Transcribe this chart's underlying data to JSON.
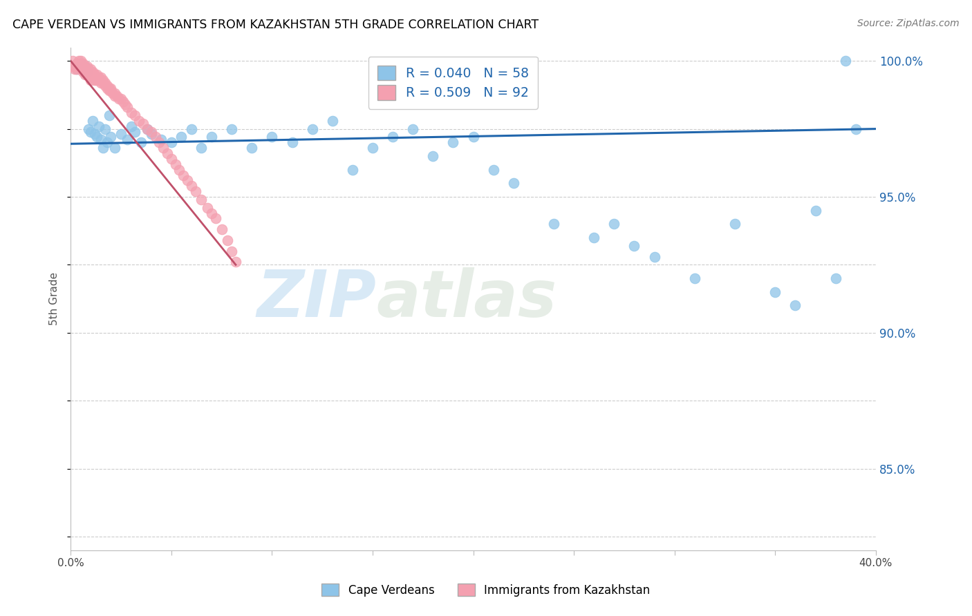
{
  "title": "CAPE VERDEAN VS IMMIGRANTS FROM KAZAKHSTAN 5TH GRADE CORRELATION CHART",
  "source": "Source: ZipAtlas.com",
  "ylabel": "5th Grade",
  "xmin": 0.0,
  "xmax": 0.4,
  "ymin": 0.82,
  "ymax": 1.005,
  "yticks": [
    0.85,
    0.9,
    0.95,
    1.0
  ],
  "ytick_labels": [
    "85.0%",
    "90.0%",
    "95.0%",
    "100.0%"
  ],
  "xticks": [
    0.0,
    0.05,
    0.1,
    0.15,
    0.2,
    0.25,
    0.3,
    0.35,
    0.4
  ],
  "xtick_labels": [
    "0.0%",
    "",
    "",
    "",
    "",
    "",
    "",
    "",
    "40.0%"
  ],
  "legend_label1": "Cape Verdeans",
  "legend_label2": "Immigrants from Kazakhstan",
  "R1": 0.04,
  "N1": 58,
  "R2": 0.509,
  "N2": 92,
  "color_blue": "#8ec4e8",
  "color_pink": "#f4a0b0",
  "color_line_blue": "#2166ac",
  "color_grid": "#cccccc",
  "watermark_zip": "ZIP",
  "watermark_atlas": "atlas",
  "blue_x": [
    0.003,
    0.005,
    0.007,
    0.008,
    0.009,
    0.01,
    0.011,
    0.012,
    0.013,
    0.014,
    0.015,
    0.016,
    0.017,
    0.018,
    0.019,
    0.02,
    0.022,
    0.025,
    0.028,
    0.03,
    0.032,
    0.035,
    0.038,
    0.04,
    0.045,
    0.05,
    0.055,
    0.06,
    0.065,
    0.07,
    0.08,
    0.09,
    0.1,
    0.11,
    0.12,
    0.13,
    0.14,
    0.15,
    0.16,
    0.17,
    0.18,
    0.19,
    0.2,
    0.21,
    0.22,
    0.24,
    0.26,
    0.27,
    0.28,
    0.29,
    0.31,
    0.33,
    0.35,
    0.36,
    0.37,
    0.38,
    0.39,
    0.385
  ],
  "blue_y": [
    0.997,
    0.999,
    0.998,
    0.996,
    0.975,
    0.974,
    0.978,
    0.973,
    0.972,
    0.976,
    0.971,
    0.968,
    0.975,
    0.97,
    0.98,
    0.972,
    0.968,
    0.973,
    0.971,
    0.976,
    0.974,
    0.97,
    0.975,
    0.973,
    0.971,
    0.97,
    0.972,
    0.975,
    0.968,
    0.972,
    0.975,
    0.968,
    0.972,
    0.97,
    0.975,
    0.978,
    0.96,
    0.968,
    0.972,
    0.975,
    0.965,
    0.97,
    0.972,
    0.96,
    0.955,
    0.94,
    0.935,
    0.94,
    0.932,
    0.928,
    0.92,
    0.94,
    0.915,
    0.91,
    0.945,
    0.92,
    0.975,
    1.0
  ],
  "pink_x": [
    0.001,
    0.001,
    0.002,
    0.002,
    0.003,
    0.003,
    0.003,
    0.004,
    0.004,
    0.004,
    0.005,
    0.005,
    0.005,
    0.005,
    0.006,
    0.006,
    0.006,
    0.006,
    0.007,
    0.007,
    0.007,
    0.007,
    0.008,
    0.008,
    0.008,
    0.008,
    0.009,
    0.009,
    0.009,
    0.01,
    0.01,
    0.01,
    0.01,
    0.01,
    0.011,
    0.011,
    0.011,
    0.012,
    0.012,
    0.012,
    0.013,
    0.013,
    0.013,
    0.014,
    0.014,
    0.015,
    0.015,
    0.015,
    0.016,
    0.016,
    0.017,
    0.017,
    0.018,
    0.018,
    0.019,
    0.019,
    0.02,
    0.02,
    0.021,
    0.022,
    0.022,
    0.023,
    0.024,
    0.025,
    0.026,
    0.027,
    0.028,
    0.03,
    0.032,
    0.034,
    0.036,
    0.038,
    0.04,
    0.042,
    0.044,
    0.046,
    0.048,
    0.05,
    0.052,
    0.054,
    0.056,
    0.058,
    0.06,
    0.062,
    0.065,
    0.068,
    0.07,
    0.072,
    0.075,
    0.078,
    0.08,
    0.082
  ],
  "pink_y": [
    0.998,
    1.0,
    0.998,
    0.997,
    0.999,
    0.998,
    0.997,
    1.0,
    0.999,
    0.998,
    1.0,
    0.999,
    0.998,
    0.997,
    0.999,
    0.998,
    0.997,
    0.996,
    0.998,
    0.997,
    0.996,
    0.995,
    0.998,
    0.997,
    0.996,
    0.995,
    0.997,
    0.996,
    0.995,
    0.997,
    0.996,
    0.995,
    0.994,
    0.993,
    0.996,
    0.995,
    0.994,
    0.995,
    0.994,
    0.993,
    0.995,
    0.994,
    0.993,
    0.994,
    0.993,
    0.994,
    0.993,
    0.992,
    0.993,
    0.992,
    0.992,
    0.991,
    0.991,
    0.99,
    0.99,
    0.989,
    0.99,
    0.989,
    0.988,
    0.988,
    0.987,
    0.987,
    0.986,
    0.986,
    0.985,
    0.984,
    0.983,
    0.981,
    0.98,
    0.978,
    0.977,
    0.975,
    0.974,
    0.972,
    0.97,
    0.968,
    0.966,
    0.964,
    0.962,
    0.96,
    0.958,
    0.956,
    0.954,
    0.952,
    0.949,
    0.946,
    0.944,
    0.942,
    0.938,
    0.934,
    0.93,
    0.926
  ],
  "blue_line_x": [
    0.0,
    0.4
  ],
  "blue_line_y": [
    0.9695,
    0.975
  ],
  "pink_line_x": [
    0.0,
    0.082
  ],
  "pink_line_y": [
    1.0,
    0.925
  ]
}
